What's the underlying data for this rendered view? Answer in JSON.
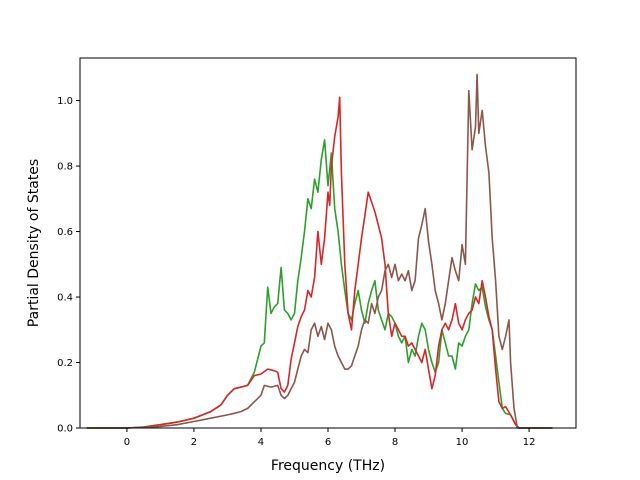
{
  "chart_data": {
    "type": "line",
    "title": "",
    "xlabel": "Frequency (THz)",
    "ylabel": "Partial Density of States",
    "xlim": [
      -1.4,
      13.4
    ],
    "ylim": [
      0.0,
      1.13
    ],
    "xticks": [
      0,
      2,
      4,
      6,
      8,
      10,
      12
    ],
    "yticks": [
      0.0,
      0.2,
      0.4,
      0.6,
      0.8,
      1.0
    ],
    "xtick_labels": [
      "0",
      "2",
      "4",
      "6",
      "8",
      "10",
      "12"
    ],
    "ytick_labels": [
      "0.0",
      "0.2",
      "0.4",
      "0.6",
      "0.8",
      "1.0"
    ],
    "grid": false,
    "legend": "none",
    "series": [
      {
        "color": "#2ca02c",
        "points": [
          [
            -1.2,
            0
          ],
          [
            0,
            0
          ],
          [
            0.5,
            0.003
          ],
          [
            1,
            0.01
          ],
          [
            1.5,
            0.018
          ],
          [
            2,
            0.03
          ],
          [
            2.5,
            0.05
          ],
          [
            2.8,
            0.07
          ],
          [
            3,
            0.1
          ],
          [
            3.2,
            0.12
          ],
          [
            3.4,
            0.125
          ],
          [
            3.6,
            0.13
          ],
          [
            3.8,
            0.17
          ],
          [
            4,
            0.25
          ],
          [
            4.1,
            0.26
          ],
          [
            4.2,
            0.43
          ],
          [
            4.3,
            0.35
          ],
          [
            4.4,
            0.37
          ],
          [
            4.5,
            0.38
          ],
          [
            4.6,
            0.49
          ],
          [
            4.7,
            0.36
          ],
          [
            4.8,
            0.35
          ],
          [
            4.9,
            0.33
          ],
          [
            5,
            0.35
          ],
          [
            5.1,
            0.45
          ],
          [
            5.2,
            0.52
          ],
          [
            5.3,
            0.6
          ],
          [
            5.4,
            0.7
          ],
          [
            5.5,
            0.67
          ],
          [
            5.6,
            0.76
          ],
          [
            5.7,
            0.72
          ],
          [
            5.8,
            0.82
          ],
          [
            5.9,
            0.88
          ],
          [
            6,
            0.74
          ],
          [
            6.1,
            0.84
          ],
          [
            6.2,
            0.67
          ],
          [
            6.3,
            0.6
          ],
          [
            6.4,
            0.5
          ],
          [
            6.5,
            0.42
          ],
          [
            6.6,
            0.35
          ],
          [
            6.7,
            0.33
          ],
          [
            6.8,
            0.38
          ],
          [
            6.9,
            0.42
          ],
          [
            7,
            0.36
          ],
          [
            7.1,
            0.32
          ],
          [
            7.2,
            0.38
          ],
          [
            7.3,
            0.42
          ],
          [
            7.4,
            0.45
          ],
          [
            7.5,
            0.36
          ],
          [
            7.6,
            0.33
          ],
          [
            7.7,
            0.3
          ],
          [
            7.8,
            0.35
          ],
          [
            7.9,
            0.34
          ],
          [
            8,
            0.32
          ],
          [
            8.1,
            0.28
          ],
          [
            8.2,
            0.26
          ],
          [
            8.3,
            0.28
          ],
          [
            8.4,
            0.2
          ],
          [
            8.5,
            0.24
          ],
          [
            8.6,
            0.22
          ],
          [
            8.7,
            0.28
          ],
          [
            8.8,
            0.32
          ],
          [
            8.9,
            0.3
          ],
          [
            9,
            0.24
          ],
          [
            9.1,
            0.2
          ],
          [
            9.2,
            0.17
          ],
          [
            9.3,
            0.2
          ],
          [
            9.4,
            0.3
          ],
          [
            9.5,
            0.26
          ],
          [
            9.6,
            0.22
          ],
          [
            9.7,
            0.22
          ],
          [
            9.8,
            0.18
          ],
          [
            9.9,
            0.26
          ],
          [
            10,
            0.25
          ],
          [
            10.1,
            0.28
          ],
          [
            10.2,
            0.3
          ],
          [
            10.3,
            0.38
          ],
          [
            10.4,
            0.44
          ],
          [
            10.5,
            0.42
          ],
          [
            10.6,
            0.43
          ],
          [
            10.7,
            0.37
          ],
          [
            10.8,
            0.33
          ],
          [
            10.9,
            0.3
          ],
          [
            11,
            0.22
          ],
          [
            11.1,
            0.14
          ],
          [
            11.2,
            0.06
          ],
          [
            11.3,
            0.045
          ],
          [
            11.45,
            0.04
          ],
          [
            11.6,
            0.01
          ],
          [
            11.7,
            0
          ],
          [
            12.7,
            0
          ]
        ]
      },
      {
        "color": "#d62728",
        "points": [
          [
            -1.2,
            0
          ],
          [
            0,
            0
          ],
          [
            0.5,
            0.003
          ],
          [
            1,
            0.01
          ],
          [
            1.5,
            0.018
          ],
          [
            2,
            0.03
          ],
          [
            2.5,
            0.05
          ],
          [
            2.8,
            0.07
          ],
          [
            3,
            0.1
          ],
          [
            3.2,
            0.12
          ],
          [
            3.4,
            0.125
          ],
          [
            3.6,
            0.13
          ],
          [
            3.8,
            0.16
          ],
          [
            4,
            0.165
          ],
          [
            4.2,
            0.18
          ],
          [
            4.4,
            0.175
          ],
          [
            4.5,
            0.17
          ],
          [
            4.6,
            0.12
          ],
          [
            4.7,
            0.11
          ],
          [
            4.8,
            0.13
          ],
          [
            4.9,
            0.21
          ],
          [
            5,
            0.26
          ],
          [
            5.1,
            0.31
          ],
          [
            5.2,
            0.34
          ],
          [
            5.3,
            0.36
          ],
          [
            5.4,
            0.42
          ],
          [
            5.5,
            0.4
          ],
          [
            5.6,
            0.46
          ],
          [
            5.7,
            0.6
          ],
          [
            5.8,
            0.5
          ],
          [
            5.9,
            0.58
          ],
          [
            6,
            0.72
          ],
          [
            6.05,
            0.68
          ],
          [
            6.1,
            0.8
          ],
          [
            6.2,
            0.89
          ],
          [
            6.3,
            0.95
          ],
          [
            6.35,
            1.01
          ],
          [
            6.4,
            0.78
          ],
          [
            6.5,
            0.5
          ],
          [
            6.6,
            0.35
          ],
          [
            6.7,
            0.3
          ],
          [
            6.8,
            0.42
          ],
          [
            6.9,
            0.5
          ],
          [
            7,
            0.58
          ],
          [
            7.1,
            0.65
          ],
          [
            7.2,
            0.72
          ],
          [
            7.3,
            0.69
          ],
          [
            7.4,
            0.66
          ],
          [
            7.5,
            0.62
          ],
          [
            7.6,
            0.58
          ],
          [
            7.7,
            0.5
          ],
          [
            7.8,
            0.35
          ],
          [
            7.9,
            0.28
          ],
          [
            8,
            0.32
          ],
          [
            8.1,
            0.3
          ],
          [
            8.2,
            0.28
          ],
          [
            8.3,
            0.28
          ],
          [
            8.4,
            0.25
          ],
          [
            8.5,
            0.26
          ],
          [
            8.6,
            0.24
          ],
          [
            8.7,
            0.22
          ],
          [
            8.8,
            0.2
          ],
          [
            8.9,
            0.24
          ],
          [
            9,
            0.18
          ],
          [
            9.1,
            0.12
          ],
          [
            9.2,
            0.16
          ],
          [
            9.3,
            0.25
          ],
          [
            9.4,
            0.3
          ],
          [
            9.5,
            0.32
          ],
          [
            9.6,
            0.3
          ],
          [
            9.7,
            0.33
          ],
          [
            9.8,
            0.38
          ],
          [
            9.9,
            0.32
          ],
          [
            10,
            0.3
          ],
          [
            10.1,
            0.33
          ],
          [
            10.2,
            0.35
          ],
          [
            10.3,
            0.36
          ],
          [
            10.4,
            0.4
          ],
          [
            10.5,
            0.38
          ],
          [
            10.6,
            0.45
          ],
          [
            10.7,
            0.4
          ],
          [
            10.8,
            0.34
          ],
          [
            10.9,
            0.3
          ],
          [
            11,
            0.18
          ],
          [
            11.1,
            0.08
          ],
          [
            11.2,
            0.06
          ],
          [
            11.3,
            0.065
          ],
          [
            11.45,
            0.04
          ],
          [
            11.6,
            0.01
          ],
          [
            11.7,
            0
          ],
          [
            12.7,
            0
          ]
        ]
      },
      {
        "color": "#8c564b",
        "points": [
          [
            -1.2,
            0
          ],
          [
            0,
            0
          ],
          [
            0.5,
            0.002
          ],
          [
            1,
            0.005
          ],
          [
            1.5,
            0.01
          ],
          [
            2,
            0.02
          ],
          [
            2.5,
            0.03
          ],
          [
            3,
            0.04
          ],
          [
            3.2,
            0.045
          ],
          [
            3.4,
            0.05
          ],
          [
            3.6,
            0.06
          ],
          [
            3.8,
            0.08
          ],
          [
            4,
            0.1
          ],
          [
            4.1,
            0.13
          ],
          [
            4.3,
            0.125
          ],
          [
            4.5,
            0.13
          ],
          [
            4.6,
            0.1
          ],
          [
            4.7,
            0.09
          ],
          [
            4.8,
            0.1
          ],
          [
            5,
            0.14
          ],
          [
            5.1,
            0.18
          ],
          [
            5.2,
            0.22
          ],
          [
            5.3,
            0.24
          ],
          [
            5.4,
            0.23
          ],
          [
            5.5,
            0.3
          ],
          [
            5.6,
            0.32
          ],
          [
            5.7,
            0.28
          ],
          [
            5.8,
            0.31
          ],
          [
            5.9,
            0.27
          ],
          [
            6,
            0.32
          ],
          [
            6.1,
            0.3
          ],
          [
            6.2,
            0.25
          ],
          [
            6.3,
            0.22
          ],
          [
            6.4,
            0.2
          ],
          [
            6.5,
            0.18
          ],
          [
            6.6,
            0.18
          ],
          [
            6.7,
            0.19
          ],
          [
            6.8,
            0.22
          ],
          [
            6.9,
            0.25
          ],
          [
            7,
            0.3
          ],
          [
            7.1,
            0.33
          ],
          [
            7.2,
            0.32
          ],
          [
            7.3,
            0.38
          ],
          [
            7.4,
            0.35
          ],
          [
            7.5,
            0.4
          ],
          [
            7.6,
            0.42
          ],
          [
            7.7,
            0.48
          ],
          [
            7.8,
            0.5
          ],
          [
            7.9,
            0.46
          ],
          [
            8,
            0.5
          ],
          [
            8.1,
            0.45
          ],
          [
            8.2,
            0.47
          ],
          [
            8.3,
            0.45
          ],
          [
            8.4,
            0.48
          ],
          [
            8.5,
            0.42
          ],
          [
            8.6,
            0.45
          ],
          [
            8.7,
            0.58
          ],
          [
            8.8,
            0.62
          ],
          [
            8.9,
            0.67
          ],
          [
            9,
            0.57
          ],
          [
            9.1,
            0.5
          ],
          [
            9.2,
            0.42
          ],
          [
            9.3,
            0.38
          ],
          [
            9.4,
            0.33
          ],
          [
            9.5,
            0.38
          ],
          [
            9.6,
            0.45
          ],
          [
            9.7,
            0.52
          ],
          [
            9.8,
            0.48
          ],
          [
            9.9,
            0.45
          ],
          [
            10,
            0.56
          ],
          [
            10.1,
            0.5
          ],
          [
            10.2,
            1.03
          ],
          [
            10.3,
            0.85
          ],
          [
            10.4,
            0.92
          ],
          [
            10.45,
            1.08
          ],
          [
            10.5,
            0.9
          ],
          [
            10.6,
            0.97
          ],
          [
            10.7,
            0.86
          ],
          [
            10.8,
            0.78
          ],
          [
            10.9,
            0.58
          ],
          [
            11,
            0.45
          ],
          [
            11.1,
            0.28
          ],
          [
            11.2,
            0.24
          ],
          [
            11.3,
            0.28
          ],
          [
            11.4,
            0.33
          ],
          [
            11.45,
            0.2
          ],
          [
            11.55,
            0.06
          ],
          [
            11.65,
            0
          ],
          [
            12.7,
            0
          ]
        ]
      }
    ]
  }
}
